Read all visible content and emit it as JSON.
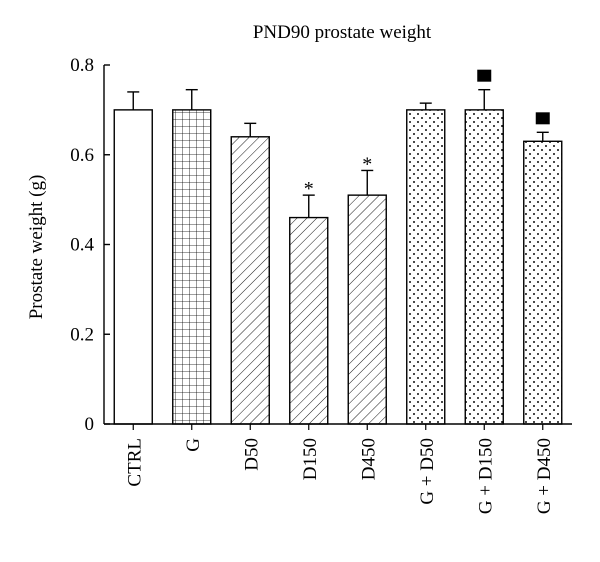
{
  "chart_data": {
    "type": "bar",
    "title": "PND90 prostate weight",
    "xlabel": "",
    "ylabel": "Prostate weight (g)",
    "ylim": [
      0,
      0.8
    ],
    "yticks": [
      "0",
      "0.2",
      "0.4",
      "0.6",
      "0.8"
    ],
    "ytick_values": [
      0,
      0.2,
      0.4,
      0.6,
      0.8
    ],
    "grid": false,
    "legend": "none",
    "categories": [
      "CTRL",
      "G",
      "D50",
      "D150",
      "D450",
      "G + D50",
      "G + D150",
      "G + D450"
    ],
    "values": [
      0.7,
      0.7,
      0.64,
      0.46,
      0.51,
      0.7,
      0.7,
      0.63
    ],
    "errors": [
      0.04,
      0.045,
      0.03,
      0.05,
      0.055,
      0.015,
      0.045,
      0.02
    ],
    "patterns": [
      "none",
      "grid",
      "hatch",
      "hatch",
      "hatch",
      "dots",
      "dots",
      "dots"
    ],
    "annotations": [
      "",
      "",
      "",
      "*",
      "*",
      "",
      "■",
      "■"
    ]
  }
}
